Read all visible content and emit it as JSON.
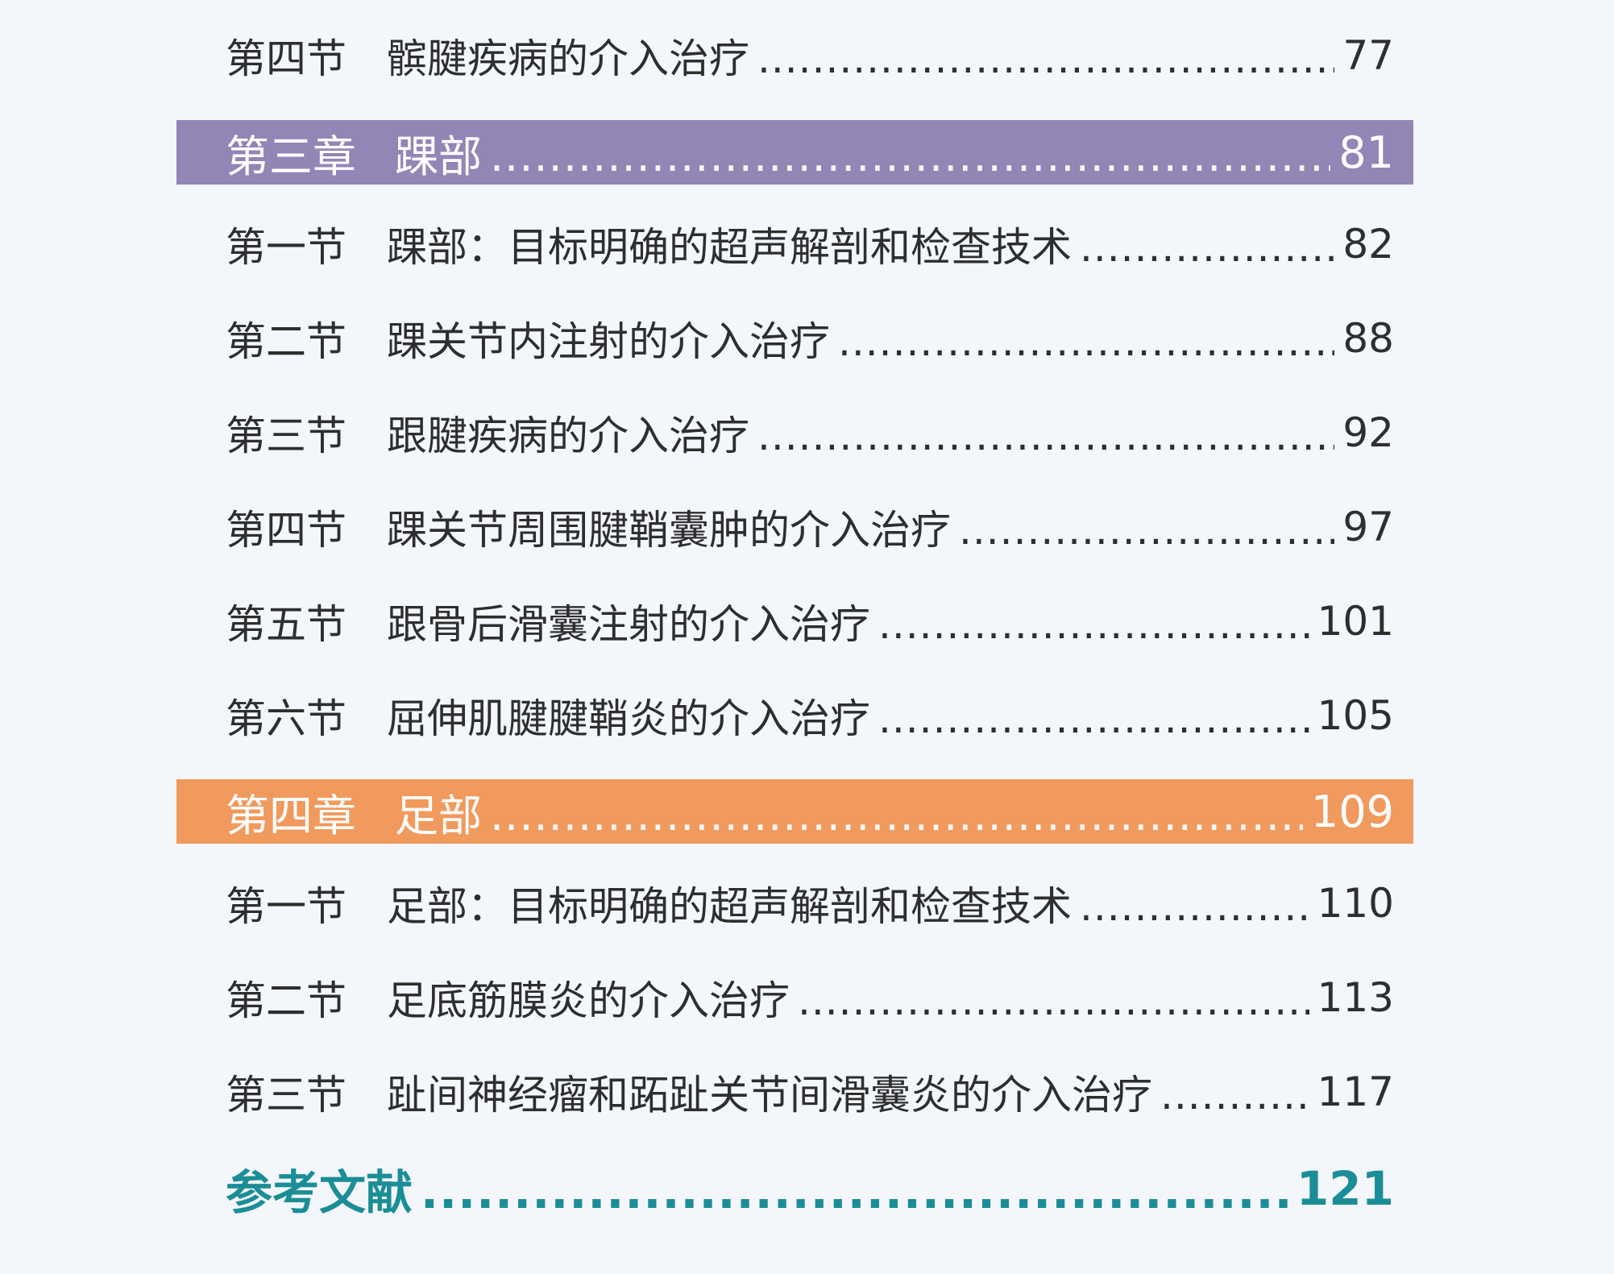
{
  "colors": {
    "page_background": "#f3f6fb",
    "chapter_three_band": "#9385b5",
    "chapter_four_band": "#f19a5d",
    "references_text": "#1b8d96"
  },
  "entries": [
    {
      "kind": "section",
      "number": "第四节",
      "title": "髌腱疾病的介入治疗",
      "page": "77"
    },
    {
      "kind": "chapter",
      "number": "第三章",
      "title": "踝部",
      "page": "81"
    },
    {
      "kind": "section",
      "number": "第一节",
      "title": "踝部：目标明确的超声解剖和检查技术",
      "page": "82"
    },
    {
      "kind": "section",
      "number": "第二节",
      "title": "踝关节内注射的介入治疗",
      "page": "88"
    },
    {
      "kind": "section",
      "number": "第三节",
      "title": "跟腱疾病的介入治疗",
      "page": "92"
    },
    {
      "kind": "section",
      "number": "第四节",
      "title": "踝关节周围腱鞘囊肿的介入治疗",
      "page": "97"
    },
    {
      "kind": "section",
      "number": "第五节",
      "title": "跟骨后滑囊注射的介入治疗",
      "page": "101"
    },
    {
      "kind": "section",
      "number": "第六节",
      "title": "屈伸肌腱腱鞘炎的介入治疗",
      "page": "105"
    },
    {
      "kind": "chapter",
      "number": "第四章",
      "title": "足部",
      "page": "109"
    },
    {
      "kind": "section",
      "number": "第一节",
      "title": "足部：目标明确的超声解剖和检查技术",
      "page": "110"
    },
    {
      "kind": "section",
      "number": "第二节",
      "title": "足底筋膜炎的介入治疗",
      "page": "113"
    },
    {
      "kind": "section",
      "number": "第三节",
      "title": "趾间神经瘤和跖趾关节间滑囊炎的介入治疗",
      "page": "117"
    },
    {
      "kind": "references",
      "title": "参考文献",
      "page": "121"
    }
  ]
}
